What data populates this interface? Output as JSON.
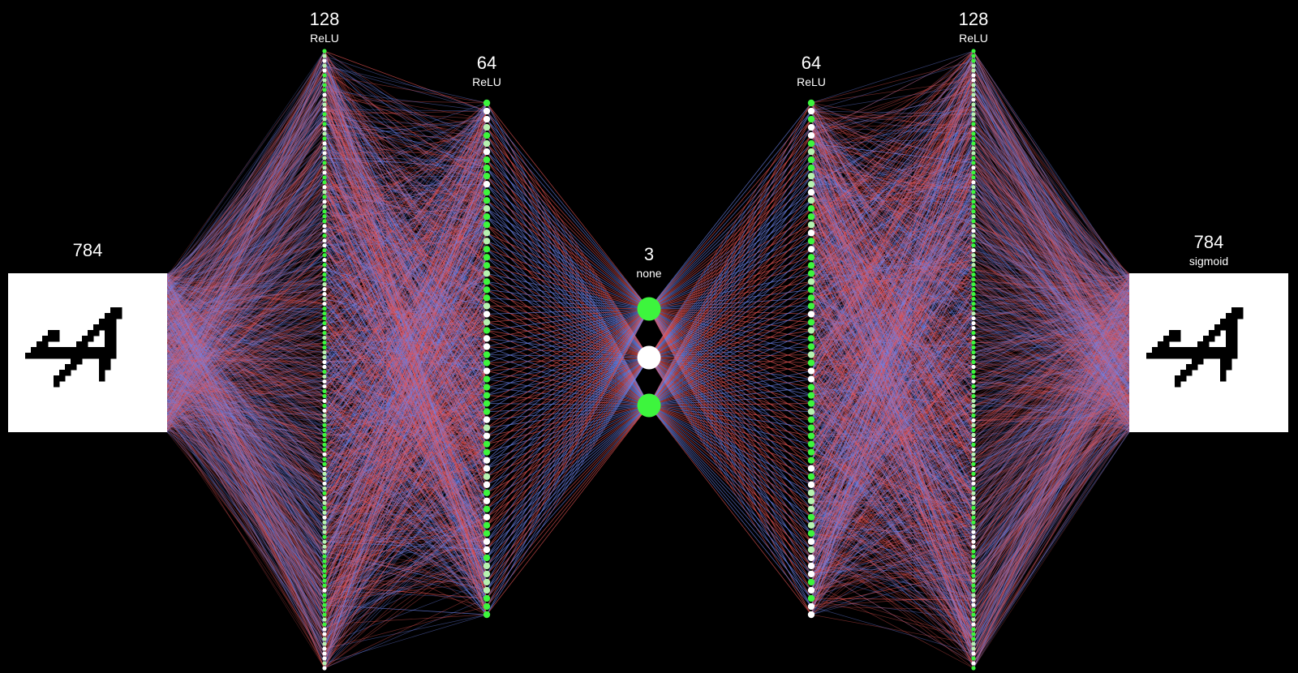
{
  "diagram": {
    "layers": [
      {
        "id": "input",
        "count_label": "784",
        "activation_label": "",
        "kind": "image"
      },
      {
        "id": "enc1",
        "count_label": "128",
        "activation_label": "ReLU",
        "kind": "nodes"
      },
      {
        "id": "enc2",
        "count_label": "64",
        "activation_label": "ReLU",
        "kind": "nodes"
      },
      {
        "id": "latent",
        "count_label": "3",
        "activation_label": "none",
        "kind": "nodes"
      },
      {
        "id": "dec1",
        "count_label": "64",
        "activation_label": "ReLU",
        "kind": "nodes"
      },
      {
        "id": "dec2",
        "count_label": "128",
        "activation_label": "ReLU",
        "kind": "nodes"
      },
      {
        "id": "output",
        "count_label": "784",
        "activation_label": "sigmoid",
        "kind": "image"
      }
    ],
    "colors": {
      "background": "#000000",
      "node_active": "#3df53d",
      "node_mid": "#b6f2b0",
      "node_inactive": "#ffffff",
      "weight_positive": "#e85555",
      "weight_negative": "#6f86f0",
      "panel": "#ffffff",
      "digit_ink": "#000000"
    },
    "latent_node_states": [
      "active",
      "inactive",
      "active"
    ],
    "digit": "4"
  }
}
